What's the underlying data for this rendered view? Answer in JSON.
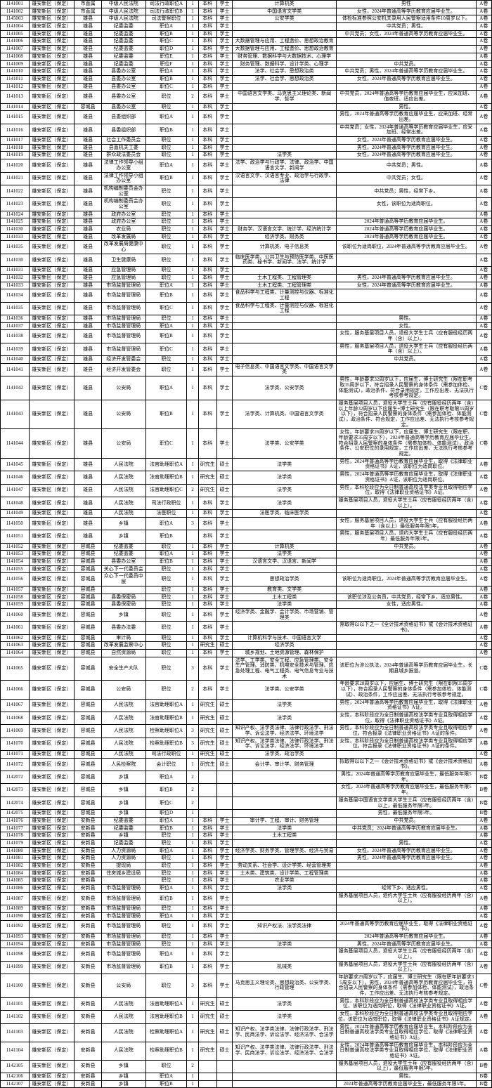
{
  "rows": [
    [
      "1141001",
      "雄安新区（保定）",
      "市直属",
      "中级人民法院",
      "司法行政职位A",
      "1",
      "本科",
      "学士",
      "计算机类",
      "男性",
      "A卷"
    ],
    [
      "1141002",
      "雄安新区（保定）",
      "市直属",
      "中级人民法院",
      "司法行政职位B",
      "1",
      "本科",
      "学士",
      "中国语言文学类",
      "女性，2024年普通高等学历教育应届毕业生。",
      "A卷"
    ],
    [
      "1145003",
      "雄安新区（保定）",
      "雄县",
      "中级人民法院",
      "司法警察职位",
      "1",
      "本科",
      "学士",
      "公安学类",
      "体检标准参照公安机关录用人民警察适用条件10周岁以下。",
      "A卷"
    ],
    [
      "1141004",
      "雄安新区（保定）",
      "雄县",
      "纪委监委",
      "职位A",
      "1",
      "本科",
      "学士",
      "",
      "中共党员；男性。",
      "A卷"
    ],
    [
      "1141005",
      "雄安新区（保定）",
      "雄县",
      "纪委监委",
      "职位B",
      "1",
      "本科",
      "学士",
      "",
      "中共党员；女性，2024年普通高等学历教育应届毕业生。",
      "A卷"
    ],
    [
      "1141006",
      "雄安新区（保定）",
      "雄县",
      "纪委监委",
      "职位C",
      "1",
      "本科",
      "学士",
      "大数据管理与应用、工程造价、思想政治教育",
      "",
      "A卷"
    ],
    [
      "1141007",
      "雄安新区（保定）",
      "雄县",
      "纪委监委",
      "职位D",
      "1",
      "本科",
      "学士",
      "大数据管理与应用、工程造价、思想政治教育",
      "",
      "A卷"
    ],
    [
      "1141008",
      "雄安新区（保定）",
      "雄县",
      "纪委监委",
      "职位E",
      "1",
      "本科",
      "学士",
      "财务管理、数据科学与大数据技术、心理学",
      "",
      "A卷"
    ],
    [
      "1141009",
      "雄安新区（保定）",
      "雄县",
      "纪委监委",
      "职位F",
      "1",
      "本科",
      "学士",
      "财务管理、数据科学、设计学类、心理学",
      "中共党员。",
      "A卷"
    ],
    [
      "1141010",
      "雄安新区（保定）",
      "雄县",
      "县委办公室",
      "职位A",
      "1",
      "本科",
      "学士",
      "法学、社会学、思想政治类",
      "中共党员；男性，2024年普通高等学历教育应届毕业生。",
      "A卷"
    ],
    [
      "1141011",
      "雄安新区（保定）",
      "雄县",
      "县委办公室",
      "职位B",
      "1",
      "本科",
      "学士",
      "法学、社会学、思想政治类",
      "女性，2024年普通高等学历教育应届毕业生。",
      "A卷"
    ],
    [
      "1141012",
      "雄安新区（保定）",
      "雄县",
      "县委办公室",
      "职位C",
      "1",
      "本科",
      "学士",
      "",
      "",
      "A卷"
    ],
    [
      "1141013",
      "雄安新区（保定）",
      "雄县",
      "县委办公室",
      "职位",
      "2",
      "本科",
      "学士",
      "中国语言文学类、马克思主义理论类、新闻学、哲学",
      "中共党员，2024年普通高等学历教育应届毕业生，应采加班、值夜班、适应出差。",
      "A卷"
    ],
    [
      "1141014",
      "雄安新区（保定）",
      "容城县",
      "县委办公室",
      "职位",
      "1",
      "本科",
      "学士",
      "",
      "男性。",
      "A卷"
    ],
    [
      "1141015",
      "雄安新区（保定）",
      "雄县",
      "县委组织部",
      "职位A",
      "1",
      "本科",
      "学士",
      "",
      "男性，2024年普通高等学历教育应届毕业生，应采加班、经常出差。",
      "A卷"
    ],
    [
      "1141016",
      "雄安新区（保定）",
      "雄县",
      "县委组织部",
      "职位B",
      "1",
      "本科",
      "学士",
      "",
      "中共党员；女性，2024年普通高等学历教育应届毕业生，应采加班、经常出差。",
      "A卷"
    ],
    [
      "1141017",
      "雄安新区（保定）",
      "雄县",
      "社会工作委员会",
      "职位",
      "1",
      "本科",
      "学士",
      "",
      "女性，2024年普通高等学历教育应届毕业生。",
      "A卷"
    ],
    [
      "1141018",
      "雄安新区（保定）",
      "雄县",
      "县直机关工委",
      "职位",
      "1",
      "本科",
      "学士",
      "",
      "男性，2024年普通高等学历教育应届毕业生。",
      "A卷"
    ],
    [
      "1141019",
      "雄安新区（保定）",
      "雄县",
      "群众政法委员会",
      "职位",
      "1",
      "本科",
      "学士",
      "法学类",
      "女性，2024年普通高等学历教育应届毕业生。",
      "A卷"
    ],
    [
      "1141020",
      "雄安新区（保定）",
      "雄县",
      "法律工作领导小组办公室",
      "职位A",
      "1",
      "本科",
      "学士",
      "法学、政治学与行政学、法律、政治学、中国语言文学、新闻学",
      "中共党员；男性。",
      "A卷"
    ],
    [
      "1141021",
      "雄安新区（保定）",
      "雄县",
      "法律工作领导小组办公室",
      "职位B",
      "1",
      "本科",
      "学士",
      "汉语言文学、汉语言专业、政治学与行政学、法律",
      "中共党员；女性。",
      "A卷"
    ],
    [
      "1141022",
      "雄安新区（保定）",
      "雄县",
      "机构编制委员会办公室",
      "职位",
      "1",
      "本科",
      "学士",
      "",
      "中共党员；男性，经常下乡。",
      "A卷"
    ],
    [
      "1141023",
      "雄安新区（保定）",
      "雄县",
      "机构编制委员会办公室",
      "职位",
      "1",
      "本科",
      "学士",
      "",
      "女性，该职位为适岗职位。",
      "A卷"
    ],
    [
      "1141024",
      "雄安新区（保定）",
      "雄县",
      "政府办公室",
      "职位",
      "1",
      "本科",
      "学士",
      "",
      "",
      "A卷"
    ],
    [
      "1141025",
      "雄安新区（保定）",
      "雄县",
      "政府办公室",
      "职位",
      "1",
      "本科",
      "学士",
      "",
      "2024年普通高等学历教育应届毕业生。",
      "A卷"
    ],
    [
      "1141030",
      "雄安新区（保定）",
      "雄县",
      "农业局",
      "职位",
      "1",
      "本科",
      "学士",
      "财务学、汉语言文学、统计学、经济统计学",
      "2024年普通高等学历教育应届毕业生。",
      "A卷"
    ],
    [
      "1141033",
      "雄安新区（保定）",
      "雄县",
      "改革发展局",
      "职位",
      "1",
      "本科",
      "学士",
      "经济学类、财务类",
      "2024年普通高等学历教育应届毕业生。",
      "A卷"
    ],
    [
      "1141035",
      "雄安新区（保定）",
      "雄县",
      "改革发展局健康中心",
      "职位",
      "1",
      "本科",
      "学士",
      "计算机类、电子信息类",
      "该职位为适岗职位，2024年普通高等学历教育应届毕业生。",
      "A卷"
    ],
    [
      "1141030",
      "雄安新区（保定）",
      "雄县",
      "卫生健康局",
      "职位",
      "1",
      "本科",
      "学士",
      "临床医学类、公共卫生与预防医学类、中医医药类、秘书学、新闻学、法学、统计学",
      "",
      "A卷"
    ],
    [
      "1141031",
      "雄安新区（保定）",
      "雄县",
      "应急管理局",
      "职位",
      "1",
      "本科",
      "学士",
      "",
      "",
      "A卷"
    ],
    [
      "1141032",
      "雄安新区（保定）",
      "雄县",
      "应急管理局",
      "职位",
      "1",
      "本科",
      "学士",
      "土木工程类、工程管理类",
      "男性，2024年普通高等学历教育应届毕业生。",
      "A卷"
    ],
    [
      "1141033",
      "雄安新区（保定）",
      "雄县",
      "市场监督管理局",
      "职位A",
      "1",
      "本科",
      "学士",
      "土木工程类、工程管理类",
      "女性，2024年普通高等学历教育应届毕业生。",
      "A卷"
    ],
    [
      "1141034",
      "雄安新区（保定）",
      "雄县",
      "市场监督管理局",
      "职位B",
      "1",
      "本科",
      "学士",
      "食品科学与工程类、计量测控与仪器、标准化工程",
      "",
      "A卷"
    ],
    [
      "1141035",
      "雄安新区（保定）",
      "雄县",
      "市场监督管理局",
      "职位C",
      "1",
      "本科",
      "学士",
      "食品科学与工程类、计量测控与仪器、标准化工程",
      "",
      "A卷"
    ],
    [
      "1141036",
      "雄安新区（保定）",
      "雄县",
      "市场监督管理局",
      "职位",
      "1",
      "本科",
      "学士",
      "",
      "男性。",
      "A卷"
    ],
    [
      "1141037",
      "雄安新区（保定）",
      "雄县",
      "市场监督管理局",
      "职位A",
      "1",
      "本科",
      "学士",
      "",
      "女性。",
      "A卷"
    ],
    [
      "1141038",
      "雄安新区（保定）",
      "雄县",
      "市场监督管理局",
      "职位B",
      "1",
      "本科",
      "学士",
      "",
      "女性，服务基层项目人员，退役大学生士兵（应有服役经历两年（含）以上）。",
      "A卷"
    ],
    [
      "1141039",
      "雄安新区（保定）",
      "雄县",
      "市场监督管理局",
      "职位C",
      "1",
      "本科",
      "学士",
      "",
      "男性，服务基层项目人员，退役大学生士兵（应有服役经历两年（含）以上）。",
      "A卷"
    ],
    [
      "1141040",
      "雄安新区（保定）",
      "雄县",
      "经济开发管委会",
      "职位",
      "1",
      "本科",
      "学士",
      "",
      "中共党员。",
      "A卷"
    ],
    [
      "1141041",
      "雄安新区（保定）",
      "雄县",
      "经济开发管委会",
      "职位",
      "1",
      "本科",
      "学士",
      "电子信息类、中国语言文学类、中国语言文学类",
      "",
      "A卷"
    ],
    [
      "1141042",
      "雄安新区（保定）",
      "雄县",
      "公安局",
      "职位A",
      "1",
      "本科",
      "学士",
      "法学类、公安学类",
      "男性，年龄要求32周岁以下，应届生、博士研究生（限在职考取35周岁以下，符合招录人民警察的身体条件（需参加体检、体能测试），政治条件、符合录用规定，工作应出差、无法执行考核参考规定。",
      "C卷"
    ],
    [
      "1141043",
      "雄安新区（保定）",
      "雄县",
      "公安局",
      "职位B",
      "1",
      "本科",
      "学士",
      "法学类、计算机类、中国语言文学类",
      "服务基层项目人员，退役大学生士兵（应有服役经历两年（含）以上年龄32周岁以下应届生+博士研究生（限在职考取限35周岁以下），符合招录人民警察的身体条件（需参加体检、体能测试），政治条件、符合规定，工作应出差、无法执行考核参考规定。",
      "C卷"
    ],
    [
      "1141044",
      "雄安新区（保定）",
      "雄县",
      "公安局",
      "职位C",
      "1",
      "本科",
      "学士",
      "法学类、公安学类",
      "女性，年龄要求26周岁以下，应届生、博士研究生（限在职、年龄要求35周岁以下），2024年普通高等学历教育应届毕业生，符合招录人民警察的身体条件（需参加体检、体能测试），政治条件、公安职位的录用规定，工作应出差、无法执行考核参考规定。",
      "C卷"
    ],
    [
      "1141045",
      "雄安新区（保定）",
      "雄县",
      "人民法院",
      "法官助理职位A",
      "1",
      "研究生",
      "硕士",
      "法学类",
      "男性，2024年普通高等学历教育应届毕业生，取得《法律职业资格证书》A证，该职位为适岗职位。",
      "A卷"
    ],
    [
      "1141046",
      "雄安新区（保定）",
      "雄县",
      "人民法院",
      "法官助理职位B",
      "1",
      "研究生",
      "硕士",
      "法学类",
      "男性，2024年普通高等学历教育应届毕业生，取得《法律职业资格证书》A证，该职位为适岗职位。",
      "A卷"
    ],
    [
      "1141047",
      "雄安新区（保定）",
      "雄县",
      "人民法院",
      "法官助理职位C",
      "2",
      "研究生",
      "硕士",
      "法学类",
      "男性，本科阶段应为全日制普通高校法学类专业且取得相应学位，取得《法律职业资格证书》A证。",
      "A卷"
    ],
    [
      "1141048",
      "雄安新区（保定）",
      "雄县",
      "人民法院",
      "司法行政职位",
      "1",
      "本科",
      "学士",
      "法学类",
      "服务基层项目人员，退役大学生士兵（应有服役经历两年（含）以上）。",
      "A卷"
    ],
    [
      "1141049",
      "雄安新区（保定）",
      "雄县",
      "人民法院",
      "法医职位",
      "1",
      "本科",
      "学士",
      "法医学类、临床医学类",
      "",
      "A卷"
    ],
    [
      "1141050",
      "雄安新区（保定）",
      "雄县",
      "乡镇",
      "职位A",
      "3",
      "本科",
      "学士",
      "",
      "女性，服务基层项目人员，退役大学生士兵（应有服役经历两年（含以上）最低服务年限5年。",
      "A卷"
    ],
    [
      "1141051",
      "雄安新区（保定）",
      "雄县",
      "乡镇",
      "职位B",
      "",
      "本科",
      "学士",
      "",
      "男性，服务基层项目人员，退约大学生士兵（应有服役经历两年）最低服务年限5年。",
      "A卷"
    ],
    [
      "1141052",
      "雄安新区（保定）",
      "容城县",
      "纪委监委",
      "职位",
      "1",
      "本科",
      "学士",
      "计算机类",
      "中共党员。",
      "A卷"
    ],
    [
      "1141053",
      "雄安新区（保定）",
      "容城县",
      "纪委监委",
      "职位A",
      "1",
      "本科",
      "学士",
      "法学类",
      "",
      "A卷"
    ],
    [
      "1141054",
      "雄安新区（保定）",
      "容城县",
      "县委办公室",
      "职位B",
      "1",
      "本科",
      "学士",
      "汉语言文学、汉语言、新闻学",
      "",
      "A卷"
    ],
    [
      "1141055",
      "雄安新区（保定）",
      "容城县",
      "关心下一代委员会",
      "职位",
      "1",
      "本科",
      "学士",
      "",
      "",
      "A卷"
    ],
    [
      "1141056",
      "雄安新区（保定）",
      "容城县",
      "众心下一代委员中层",
      "职位",
      "1",
      "本科",
      "学士",
      "思想政治学类",
      "该职位为适岗职位，2024年普通高等学历教育应届毕业生。",
      "A卷"
    ],
    [
      "1141057",
      "雄安新区（保定）",
      "容城县",
      "",
      "职位",
      "1",
      "本科",
      "学士",
      "教育类、文学类",
      "",
      "A卷"
    ],
    [
      "1141058",
      "雄安新区（保定）",
      "容城县",
      "县委保密局",
      "职位",
      "1",
      "本科",
      "学士",
      "土木工程类",
      "该职位涉及公务员，中共党员，经常下乡，适应男性。",
      "A卷"
    ],
    [
      "1141059",
      "雄安新区（保定）",
      "容城县",
      "县委保密局",
      "职位",
      "1",
      "本科",
      "学士",
      "法学类",
      "女性，适应男性。",
      "A卷"
    ],
    [
      "1141060",
      "雄安新区（保定）",
      "容城县",
      "乡镇",
      "职位",
      "1",
      "本科",
      "学士",
      "经济学类、金融学、会计学类、市场营销、管理类",
      "",
      "A卷"
    ],
    [
      "1141061",
      "雄安新区（保定）",
      "容城县",
      "县委办法委",
      "职位",
      "1",
      "本科",
      "学士",
      "",
      "需取得以以下之一《全计技术资格证书》或《会计技术资格证书》。",
      "A卷"
    ],
    [
      "1141062",
      "雄安新区（保定）",
      "容城县",
      "审计局",
      "职位",
      "1",
      "本科",
      "学士",
      "计算机科学与技术、中国语言文学",
      "",
      "A卷"
    ],
    [
      "1141063",
      "雄安新区（保定）",
      "容城县",
      "改革发展监察中心",
      "职位",
      "1",
      "研究生",
      "硕士",
      "经济学类",
      "",
      "A卷"
    ],
    [
      "1141064",
      "雄安新区（保定）",
      "容城县",
      "自然资源局",
      "职位",
      "1",
      "本科",
      "学士",
      "城乡规划、土地资源管理、森林保护",
      "",
      "A卷"
    ],
    [
      "1141065",
      "雄安新区（保定）",
      "容城县",
      "安全生产大队",
      "职位",
      "3",
      "本科",
      "学士",
      "法学、工学类、安全工程、应急管理类、安全生产管理、消防类、机电安全技术与管理、应急处理工程、电气工程类、电气信息专业与技术",
      "该职位为涉公执法，2024年普通高等学历教育应届毕业生，长期县城乡报道。",
      "C卷"
    ],
    [
      "1141066",
      "雄安新区（保定）",
      "容城县",
      "公安局",
      "职位",
      "2",
      "本科",
      "学士",
      "法学类、公安学类",
      "年龄要求28周岁以下，应届生、博士研究生（限在职限35周岁以下），符合招录人民警察的身体条件（需参加体检、体能测试）、政治条件，工作应出差、无法执行考核参考规定。",
      "C卷"
    ],
    [
      "1141067",
      "雄安新区（保定）",
      "容城县",
      "人民法院",
      "法官助理职位A",
      "1",
      "研究生",
      "硕士",
      "法学类",
      "男性，2024年普通高等学历教育应届毕业生，取得《法律职业资格证书》A证。",
      "A卷"
    ],
    [
      "1141068",
      "雄安新区（保定）",
      "容城县",
      "人民法院",
      "法官助理职位B",
      "1",
      "研究生",
      "硕士",
      "法学类",
      "女性，本科阶段应为全日制普通高校法学类专业且取得相应学位，取得《法律职业资格证书》A证。",
      "A卷"
    ],
    [
      "1141069",
      "雄安新区（保定）",
      "容城县",
      "人民法院",
      "检察助理职位A",
      "3",
      "研究生",
      "硕士",
      "知识产权、法学类法律、法律行政法学、刑法学、诉讼法学、经济法学、环境法学",
      "男性，本科阶段应为全日制普通高校法学类专业且取得相应学位，符合报录《法律职业资格证书》A证的条件。",
      "A卷"
    ],
    [
      "1141070",
      "雄安新区（保定）",
      "容城县",
      "人民法院",
      "检察助理职位B",
      "3",
      "研究生",
      "硕士",
      "知识产权、法学类法律、法律行政法学、刑法学、诉讼法学、经济法学、环境法学",
      "女性，本科阶段应为全日制普通高校法学类专业且取得相应学位，符合报录《法律职业资格证书》A证的条件。",
      "A卷"
    ],
    [
      "1141071",
      "雄安新区（保定）",
      "容城县",
      "人民法院",
      "司法行政职位",
      "1",
      "研究生",
      "硕士",
      "法学类、政治学类",
      "",
      "A卷"
    ],
    [
      "1141072",
      "雄安新区（保定）",
      "容城县",
      "人民检察院",
      "会计职位",
      "1",
      "研究生",
      "硕士",
      "会计学、审计学、财务管理",
      "拟取得以以下之一《会计技术资格证书》或《会计技术资格证书》。",
      "A卷"
    ],
    [
      "1142072",
      "雄安新区（保定）",
      "容城县",
      "乡镇",
      "职位A",
      "2",
      "",
      "",
      "",
      "男性，2024年普通高等学历教育应届毕业生，最低服务年限5年。",
      "B卷"
    ],
    [
      "1142073",
      "雄安新区（保定）",
      "容城县",
      "乡镇",
      "职位B",
      "2",
      "",
      "",
      "",
      "女性，2024年普通高等学历教育应届毕业生，最低服务年限5年。",
      "B卷"
    ],
    [
      "1142074",
      "雄安新区（保定）",
      "容城县",
      "乡镇",
      "职位C",
      "2",
      "",
      "",
      "",
      "服务基层中国语言文学类大学生士兵（应有服役经历两年（含）以上，最低服务年限5年。",
      "B卷"
    ],
    [
      "1142075",
      "雄安新区（保定）",
      "容城县",
      "乡镇",
      "职位D",
      "1",
      "",
      "",
      "",
      "男性，最低服务年限5年。",
      "B卷"
    ],
    [
      "1141076",
      "雄安新区（保定）",
      "安新县",
      "纪委监委",
      "职位A",
      "1",
      "本科",
      "学士",
      "审计学、工程、审计、财务管理",
      "中共党员。",
      "A卷"
    ],
    [
      "1141077",
      "雄安新区（保定）",
      "安新县",
      "纪委监委",
      "职位B",
      "1",
      "本科",
      "学士",
      "法学类",
      "中共党员；2024年普通高等学历教育应届毕业生。",
      "A卷"
    ],
    [
      "1141078",
      "雄安新区（保定）",
      "安新县",
      "乡镇",
      "职位",
      "1",
      "本科",
      "学士",
      "土木工程类",
      "",
      "A卷"
    ],
    [
      "1141079",
      "雄安新区（保定）",
      "安新县",
      "纪委监委",
      "职位",
      "1",
      "本科",
      "学士",
      "",
      "男性。",
      "A卷"
    ],
    [
      "1141080",
      "雄安新区（保定）",
      "安新县",
      "人力资源局",
      "职位A",
      "1",
      "本科",
      "学士",
      "经济学类、财务学类、管理学类、经济与贸易",
      "女性，2024年普通高等学历教育应届毕业生。",
      "A卷"
    ],
    [
      "1141081",
      "雄安新区（保定）",
      "安新县",
      "人力资源局",
      "职位",
      "1",
      "本科",
      "学士",
      "",
      "男性，2024年普通高等学历教育应届毕业生。",
      "A卷"
    ],
    [
      "1141082",
      "雄安新区（保定）",
      "安新县",
      "提现局",
      "职位",
      "1",
      "本科",
      "学士",
      "劳动关系、社会学、设计学类、经营管理类",
      "",
      "A卷"
    ],
    [
      "1141084",
      "雄安新区（保定）",
      "安新县",
      "住房城乡建设局",
      "职位",
      "1",
      "本科",
      "学士",
      "土木类、建筑类、设计学类、工程管理类",
      "",
      "A卷"
    ],
    [
      "1141085",
      "雄安新区（保定）",
      "安新县",
      "",
      "职位",
      "1",
      "本科",
      "学士",
      "农业学类",
      "",
      "A卷"
    ],
    [
      "1141086",
      "雄安新区（保定）",
      "安新县",
      "市场监督管理局",
      "职位A",
      "1",
      "本科",
      "学士",
      "法学类",
      "经常下乡、适应男性。",
      "A卷"
    ],
    [
      "1141087",
      "雄安新区（保定）",
      "安新县",
      "市场监督管理局",
      "职位B",
      "1",
      "本科",
      "学士",
      "",
      "服务基层项目人员，退约大学生士兵（应有服役经历两年（含）以上）。",
      "A卷"
    ],
    [
      "1141089",
      "雄安新区（保定）",
      "安新县",
      "市场监督管理局",
      "职位",
      "1",
      "本科",
      "学士",
      "",
      "",
      "A卷"
    ],
    [
      "1141090",
      "雄安新区（保定）",
      "安新县",
      "市场监督管理局",
      "职位A",
      "1",
      "本科",
      "学士",
      "",
      "",
      "A卷"
    ],
    [
      "1141092",
      "雄安新区（保定）",
      "安新县",
      "市场监督管理局",
      "职位",
      "1",
      "本科",
      "学士",
      "知识产权法、法学类法律",
      "2024年普通高等学历教育应届毕业生，取得《法律职业资格证书》。",
      "A卷"
    ],
    [
      "1141093",
      "雄安新区（保定）",
      "安新县",
      "市场监督管理局",
      "职位",
      "1",
      "本科",
      "学士",
      "",
      "2024年普通高等学历教育应届毕业生。",
      "A卷"
    ],
    [
      "1141094",
      "雄安新区（保定）",
      "安新县",
      "市场监督管理局",
      "职位",
      "1",
      "本科",
      "学士",
      "法学类",
      "男性，2024年普通高等学历教育应届毕业生。",
      "A卷"
    ],
    [
      "1141098",
      "雄安新区（保定）",
      "安新县",
      "市场监督管理局",
      "职位A",
      "1",
      "本科",
      "学士",
      "",
      "服务基层项目人员，退役大学生士兵（应有服役经历两年（含）以上）。",
      "A卷"
    ],
    [
      "1141099",
      "雄安新区（保定）",
      "安新县",
      "市场监督管理局",
      "职位B",
      "1",
      "本科",
      "学士",
      "机械类",
      "服务基层项目人员，退役大学生士兵（应有服役经历两年（含）以上）。",
      "A卷"
    ],
    [
      "1141100",
      "雄安新区（保定）",
      "安新县",
      "公安局",
      "职位",
      "3",
      "本科",
      "学士",
      "马克思主义理论类、思想政治类、公安学类、行政管理",
      "年龄要求29周岁以下，应届生、博士研究生（限在职年龄要求35周岁以下），男性，2024年普通高等学历教育应届毕业生，符合招录人民警察的身体条件（需参加体检、体能测试），政治条件，工作应出差、无法执行考核参考规定。",
      "C卷"
    ],
    [
      "1141101",
      "雄安新区（保定）",
      "安新县",
      "人民法院",
      "法官助理职位A",
      "1",
      "研究生",
      "硕士",
      "法学类",
      "男性，本科阶段应为全日制普通高校法学类专业且取得相应学位，该职位为适岗职位，取得《法律职业资格证书》A证。",
      "A卷"
    ],
    [
      "1141102",
      "雄安新区（保定）",
      "安新县",
      "人民法院",
      "法官助理职位B",
      "1",
      "研究生",
      "硕士",
      "法学类",
      "女性，本科阶段应为全日制普通高校法学类专业且取得相应学位，该职位为适岗职位，取得《法律职业资格证书》A证规定。",
      "A卷"
    ],
    [
      "1141103",
      "雄安新区（保定）",
      "安新县",
      "人民法院",
      "检察助理职位A",
      "1",
      "研究生",
      "硕士",
      "知识产权、法学类法律、法律行政法学、刑法学、民商法学、诉讼法学、经济法学、合法学",
      "男性，2024年普通高等学历教育应届毕业生，本科阶段应为全日制普通高校法学类专业且取得相应学位，取得《法律职业资格证书》A证。",
      "A卷"
    ],
    [
      "1141104",
      "雄安新区（保定）",
      "安新县",
      "人民法院",
      "检察助理职位B",
      "1",
      "研究生",
      "硕士",
      "知识产权、法学类法律、法律行政法学、刑法学、民商法学、诉讼法学、经济法学、合法学",
      "女性，2024年普通高等学历教育应届毕业生，本科阶段应为全日制普通高校法学类专业且取得相应学位，取得《法律职业资格证书》A证。",
      "A卷"
    ],
    [
      "1142105",
      "雄安新区（保定）",
      "安新县",
      "乡镇",
      "职位",
      "2",
      "",
      "",
      "",
      "服务基层项目人员，退役大学生士兵（应有服役经历两年（含）以上），最低服务年限5年。",
      "B卷"
    ],
    [
      "1142106",
      "雄安新区（保定）",
      "安新县",
      "乡镇",
      "职位A",
      "1",
      "",
      "",
      "",
      "男性。",
      "B卷"
    ],
    [
      "1142107",
      "雄安新区（保定）",
      "安新县",
      "乡镇",
      "职位B",
      "1",
      "",
      "",
      "",
      "2024年普通高等学历教育应届毕业生，最低服务年限5年。",
      "B卷"
    ]
  ]
}
